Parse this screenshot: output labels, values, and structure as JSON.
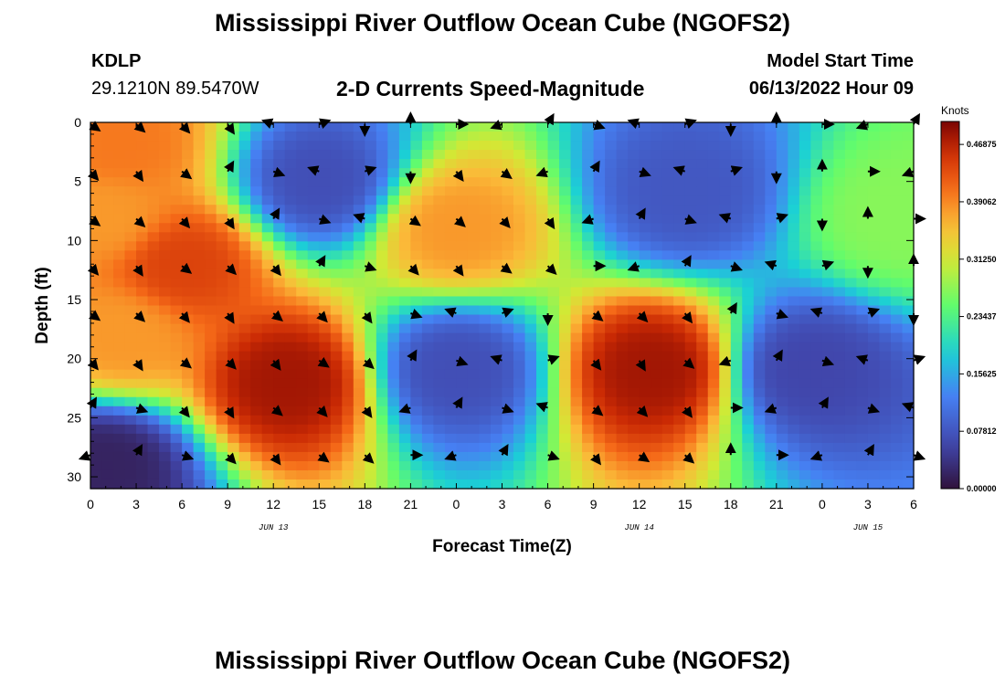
{
  "header": {
    "title": "Mississippi River Outflow Ocean Cube (NGOFS2)",
    "station": "KDLP",
    "coordinates": "29.1210N  89.5470W",
    "subtitle": "2-D Currents Speed-Magnitude",
    "model_start_label": "Model Start Time",
    "model_start_value": "06/13/2022 Hour 09"
  },
  "footer": {
    "title": "Mississippi River Outflow Ocean Cube (NGOFS2)"
  },
  "chart_data": {
    "type": "heatmap",
    "title": "2-D Currents Speed-Magnitude",
    "xlabel": "Forecast Time(Z)",
    "ylabel": "Depth (ft)",
    "x_tick_labels": [
      "0",
      "3",
      "6",
      "9",
      "12",
      "15",
      "18",
      "21",
      "0",
      "3",
      "6",
      "9",
      "12",
      "15",
      "18",
      "21",
      "0",
      "3",
      "6"
    ],
    "x_range_hours": [
      0,
      54
    ],
    "day_labels": [
      {
        "label": "JUN 13",
        "hour": 12
      },
      {
        "label": "JUN 14",
        "hour": 36
      },
      {
        "label": "JUN 15",
        "hour": 51
      }
    ],
    "y_tick_values": [
      0,
      5,
      10,
      15,
      20,
      25,
      30
    ],
    "ylim": [
      0,
      31
    ],
    "colorbar": {
      "unit": "Knots",
      "range": [
        0,
        0.5
      ],
      "tick_labels": [
        "0.00000",
        "0.07812",
        "0.15625",
        "0.23437",
        "0.31250",
        "0.39062",
        "0.46875"
      ],
      "tick_values": [
        0,
        0.078125,
        0.15625,
        0.234375,
        0.3125,
        0.390625,
        0.46875
      ]
    },
    "speed_field_centers": [
      {
        "hour": 1,
        "depth": 8,
        "speed": 0.38
      },
      {
        "hour": 6,
        "depth": 12,
        "speed": 0.44
      },
      {
        "hour": 2,
        "depth": 2,
        "speed": 0.4
      },
      {
        "hour": 2,
        "depth": 18,
        "speed": 0.38
      },
      {
        "hour": 13,
        "depth": 22,
        "speed": 0.48
      },
      {
        "hour": 15,
        "depth": 5,
        "speed": 0.07
      },
      {
        "hour": 24,
        "depth": 9,
        "speed": 0.38
      },
      {
        "hour": 24,
        "depth": 21,
        "speed": 0.07
      },
      {
        "hour": 1,
        "depth": 29,
        "speed": 0.02
      },
      {
        "hour": 37,
        "depth": 21,
        "speed": 0.48
      },
      {
        "hour": 39,
        "depth": 6,
        "speed": 0.08
      },
      {
        "hour": 47,
        "depth": 21,
        "speed": 0.06
      },
      {
        "hour": 53,
        "depth": 8,
        "speed": 0.27
      }
    ],
    "vector_grid": {
      "hours": [
        0,
        3,
        6,
        9,
        12,
        15,
        18,
        21,
        24,
        27,
        30,
        33,
        36,
        39,
        42,
        45,
        48,
        51,
        54
      ],
      "depths": [
        0,
        4,
        8,
        12,
        16,
        20,
        24,
        28
      ],
      "direction_note": "arrows show current direction; mostly southeast in warm regions"
    }
  }
}
